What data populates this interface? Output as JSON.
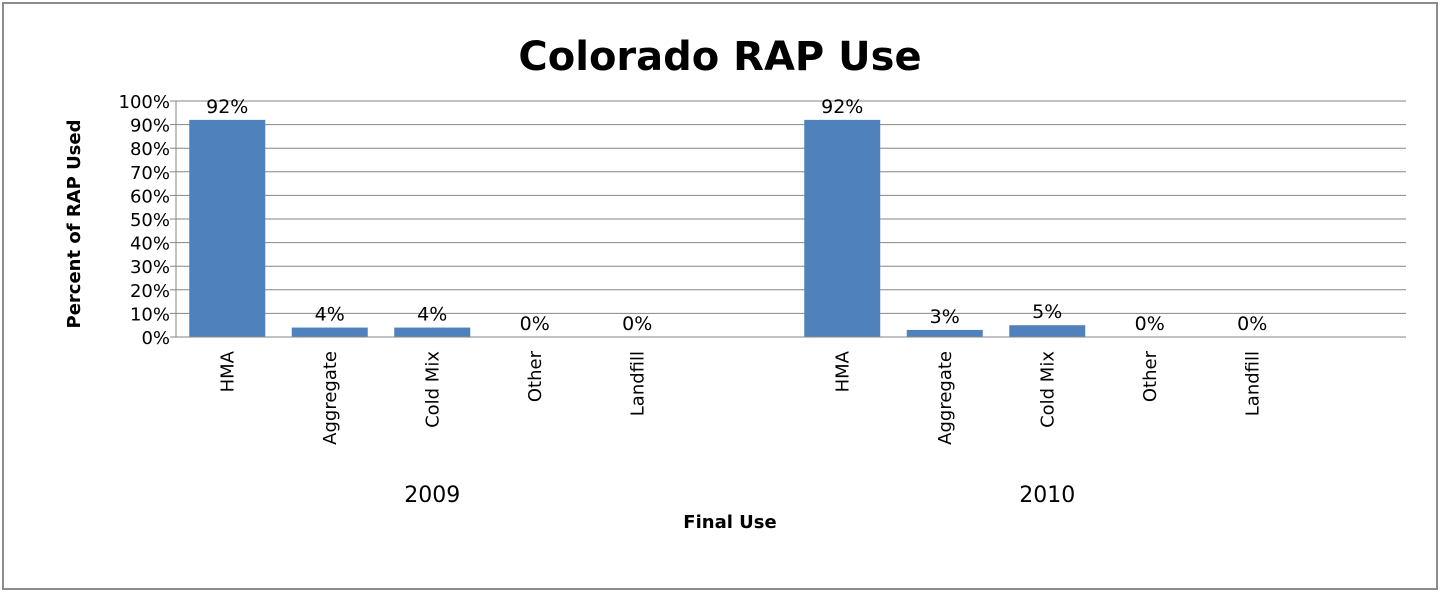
{
  "chart_data": {
    "type": "bar",
    "title": "Colorado RAP Use",
    "xlabel": "Final Use",
    "ylabel": "Percent of RAP Used",
    "ylim": [
      0,
      100
    ],
    "yticks": [
      "0%",
      "10%",
      "20%",
      "30%",
      "40%",
      "50%",
      "60%",
      "70%",
      "80%",
      "90%",
      "100%"
    ],
    "grid": true,
    "bar_color": "#4F81BD",
    "groups": [
      {
        "name": "2009",
        "categories": [
          "HMA",
          "Aggregate",
          "Cold Mix",
          "Other",
          "Landfill"
        ],
        "values": [
          92,
          4,
          4,
          0,
          0
        ],
        "labels": [
          "92%",
          "4%",
          "4%",
          "0%",
          "0%"
        ]
      },
      {
        "name": "2010",
        "categories": [
          "HMA",
          "Aggregate",
          "Cold Mix",
          "Other",
          "Landfill"
        ],
        "values": [
          92,
          3,
          5,
          0,
          0
        ],
        "labels": [
          "92%",
          "3%",
          "5%",
          "0%",
          "0%"
        ]
      }
    ]
  }
}
